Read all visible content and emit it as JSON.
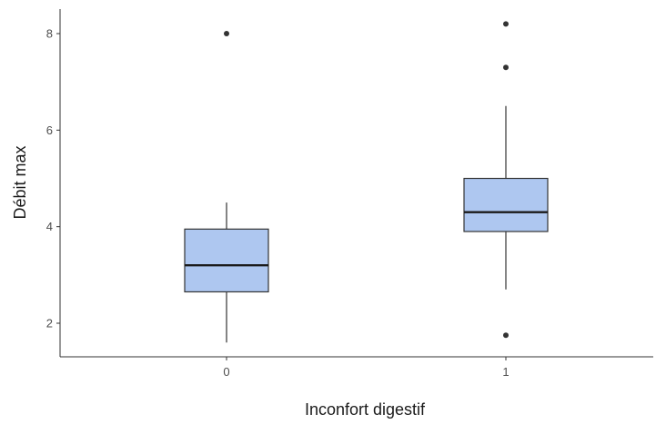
{
  "chart_data": {
    "type": "boxplot",
    "xlabel": "Inconfort digestif",
    "ylabel": "Débit max",
    "categories": [
      "0",
      "1"
    ],
    "ylim": [
      1.3,
      8.5
    ],
    "yticks": [
      2,
      4,
      6,
      8
    ],
    "grid": false,
    "box_fill": "#aec7f0",
    "box_stroke": "#333333",
    "boxes": [
      {
        "category": "0",
        "whisker_low": 1.6,
        "q1": 2.65,
        "median": 3.2,
        "q3": 3.95,
        "whisker_high": 4.5,
        "outliers": [
          8.0
        ]
      },
      {
        "category": "1",
        "whisker_low": 2.7,
        "q1": 3.9,
        "median": 4.3,
        "q3": 5.0,
        "whisker_high": 6.5,
        "outliers": [
          1.75,
          7.3,
          8.2
        ]
      }
    ]
  }
}
